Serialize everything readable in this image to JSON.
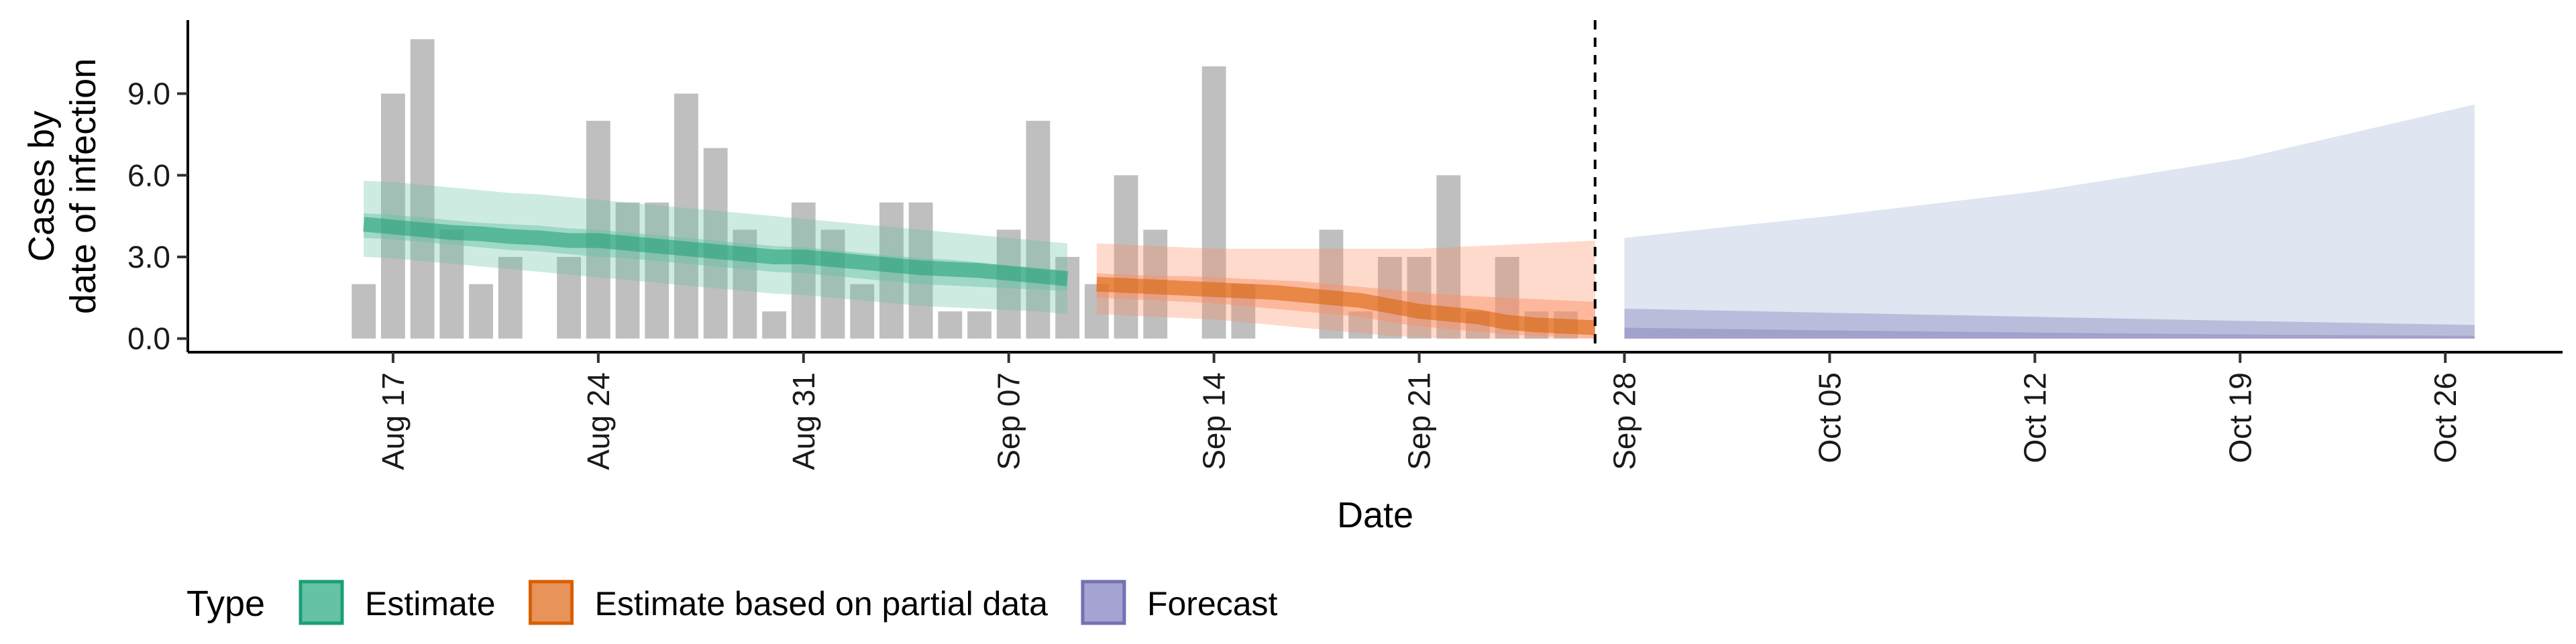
{
  "chart_data": {
    "type": "area",
    "xlabel": "Date",
    "ylabel_lines": [
      "Cases by",
      "date of infection"
    ],
    "x_ticks": [
      "Aug 17",
      "Aug 24",
      "Aug 31",
      "Sep 07",
      "Sep 14",
      "Sep 21",
      "Sep 28",
      "Oct 05",
      "Oct 12",
      "Oct 19",
      "Oct 26"
    ],
    "y_ticks": [
      "0.0",
      "3.0",
      "6.0",
      "9.0"
    ],
    "ylim": [
      -0.5,
      11.7
    ],
    "x_range": [
      "2020-08-10",
      "2020-10-30"
    ],
    "reference_line": "2020-09-27",
    "reported_cases": {
      "start_date": "2020-08-16",
      "values": [
        2,
        9,
        11,
        4,
        2,
        3,
        0,
        3,
        8,
        5,
        5,
        9,
        7,
        4,
        1,
        5,
        4,
        2,
        5,
        5,
        1,
        1,
        4,
        8,
        3,
        2,
        6,
        4,
        0,
        10,
        2,
        0,
        0,
        4,
        1,
        3,
        3,
        6,
        1,
        3,
        1,
        1
      ]
    },
    "series": [
      {
        "name": "Estimate",
        "color": "#1b9e77",
        "fill": "#66c2a5",
        "start_date": "2020-08-16",
        "median": [
          4.2,
          4.1,
          4.0,
          3.9,
          3.85,
          3.75,
          3.7,
          3.6,
          3.6,
          3.5,
          3.4,
          3.3,
          3.2,
          3.1,
          3.0,
          3.0,
          2.9,
          2.8,
          2.7,
          2.6,
          2.55,
          2.5,
          2.4,
          2.3,
          2.2
        ],
        "lower_50": [
          3.7,
          3.65,
          3.55,
          3.45,
          3.35,
          3.25,
          3.2,
          3.1,
          3.0,
          2.95,
          2.85,
          2.75,
          2.65,
          2.55,
          2.45,
          2.4,
          2.3,
          2.2,
          2.1,
          2.0,
          1.95,
          1.9,
          1.85,
          1.8,
          1.75
        ],
        "upper_50": [
          4.6,
          4.55,
          4.45,
          4.35,
          4.25,
          4.2,
          4.15,
          4.05,
          4.0,
          3.9,
          3.8,
          3.7,
          3.6,
          3.5,
          3.4,
          3.35,
          3.25,
          3.15,
          3.05,
          2.95,
          2.9,
          2.8,
          2.7,
          2.6,
          2.5
        ],
        "lower_90": [
          3.0,
          2.95,
          2.85,
          2.75,
          2.65,
          2.55,
          2.45,
          2.35,
          2.25,
          2.15,
          2.05,
          1.95,
          1.85,
          1.75,
          1.65,
          1.6,
          1.5,
          1.4,
          1.3,
          1.2,
          1.15,
          1.1,
          1.05,
          1.0,
          0.9
        ],
        "upper_90": [
          5.8,
          5.75,
          5.65,
          5.55,
          5.45,
          5.35,
          5.3,
          5.2,
          5.1,
          5.0,
          4.9,
          4.8,
          4.7,
          4.6,
          4.5,
          4.4,
          4.3,
          4.2,
          4.1,
          4.0,
          3.9,
          3.8,
          3.7,
          3.6,
          3.5
        ]
      },
      {
        "name": "Estimate based on partial data",
        "color": "#d95f02",
        "fill": "#fc8d62",
        "start_date": "2020-09-10",
        "median": [
          2.0,
          1.95,
          1.9,
          1.85,
          1.8,
          1.75,
          1.7,
          1.6,
          1.5,
          1.4,
          1.2,
          1.0,
          0.9,
          0.8,
          0.6,
          0.5,
          0.45,
          0.4
        ],
        "lower_50": [
          1.5,
          1.45,
          1.4,
          1.35,
          1.3,
          1.2,
          1.1,
          1.0,
          0.9,
          0.8,
          0.6,
          0.45,
          0.35,
          0.25,
          0.15,
          0.1,
          0.05,
          0.0
        ],
        "upper_50": [
          2.4,
          2.35,
          2.3,
          2.3,
          2.25,
          2.2,
          2.15,
          2.1,
          2.0,
          1.9,
          1.8,
          1.7,
          1.6,
          1.55,
          1.5,
          1.45,
          1.4,
          1.35
        ],
        "lower_90": [
          0.9,
          0.85,
          0.8,
          0.75,
          0.7,
          0.6,
          0.5,
          0.4,
          0.3,
          0.2,
          0.1,
          0.05,
          0.0,
          0.0,
          0.0,
          0.0,
          0.0,
          0.0
        ],
        "upper_90": [
          3.5,
          3.45,
          3.4,
          3.35,
          3.3,
          3.3,
          3.3,
          3.3,
          3.3,
          3.3,
          3.3,
          3.3,
          3.35,
          3.4,
          3.45,
          3.5,
          3.55,
          3.6
        ]
      },
      {
        "name": "Forecast",
        "color": "#7570b3",
        "fill": "#8da0cb",
        "dates": [
          "2020-09-28",
          "2020-10-05",
          "2020-10-12",
          "2020-10-19",
          "2020-10-27"
        ],
        "lower_90": [
          0,
          0,
          0,
          0,
          0
        ],
        "upper_90": [
          3.7,
          4.5,
          5.4,
          6.6,
          8.6
        ],
        "lower_50": [
          0,
          0,
          0,
          0,
          0
        ],
        "upper_50": [
          1.1,
          0.95,
          0.8,
          0.65,
          0.5
        ],
        "lower_20": [
          0,
          0,
          0,
          0,
          0
        ],
        "upper_20": [
          0.4,
          0.3,
          0.22,
          0.15,
          0.1
        ]
      }
    ],
    "legend": {
      "title": "Type",
      "position": "bottom-left",
      "items": [
        {
          "label": "Estimate",
          "fill": "#66c2a5",
          "stroke": "#1b9e77"
        },
        {
          "label": "Estimate based on partial data",
          "fill": "#e8935a",
          "stroke": "#d95f02"
        },
        {
          "label": "Forecast",
          "fill": "#a5a3d1",
          "stroke": "#7570b3"
        }
      ]
    }
  }
}
